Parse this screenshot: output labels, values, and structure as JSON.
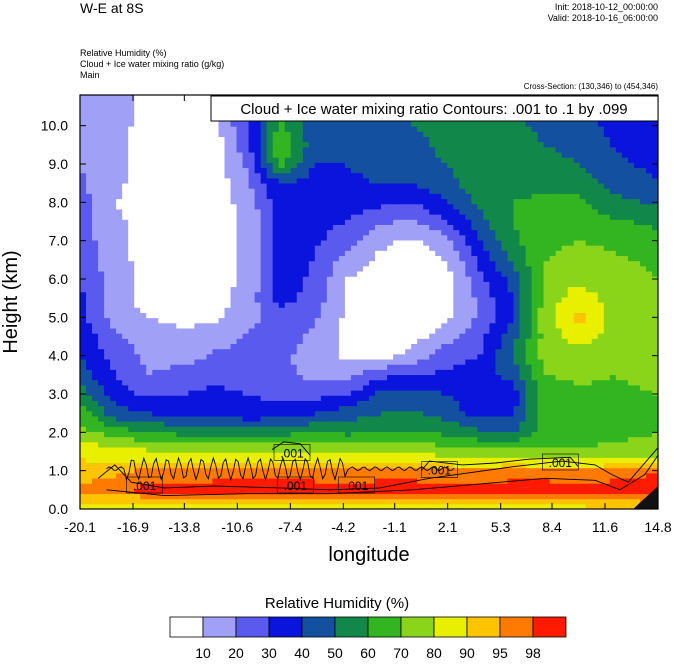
{
  "header": {
    "title": "W-E at 8S",
    "init": "Init: 2018-10-12_00:00:00",
    "valid": "Valid: 2018-10-16_06:00:00",
    "variable_1": "Relative Humidity   (%)",
    "variable_2": "Cloud + Ice water mixing ratio   (g/kg)",
    "variable_3": "Main",
    "cross_section": "Cross-Section: (130,346) to (454,346)"
  },
  "chart_data": {
    "type": "heatmap",
    "title": "",
    "xlabel": "longitude",
    "ylabel": "Height (km)",
    "xlim": [
      -20.1,
      14.8
    ],
    "ylim": [
      0,
      10.8
    ],
    "x_ticks": [
      "-20.1",
      "-16.9",
      "-13.8",
      "-10.6",
      "-7.4",
      "-4.2",
      "-1.1",
      "2.1",
      "5.3",
      "8.4",
      "11.6",
      "14.8"
    ],
    "y_ticks": [
      "0.0",
      "1.0",
      "2.0",
      "3.0",
      "4.0",
      "5.0",
      "6.0",
      "7.0",
      "8.0",
      "9.0",
      "10.0"
    ],
    "contour_annotation": "Cloud + Ice water mixing ratio Contours: .001 to .1 by .099",
    "contour_labels": [
      {
        "text": ".001",
        "x": -16.2,
        "y": 0.6
      },
      {
        "text": ".001",
        "x": -7.3,
        "y": 1.45
      },
      {
        "text": ".001",
        "x": -7.1,
        "y": 0.6
      },
      {
        "text": ".001",
        "x": -3.4,
        "y": 0.6
      },
      {
        "text": ".001",
        "x": 1.6,
        "y": 1.0
      },
      {
        "text": ".001",
        "x": 8.9,
        "y": 1.2
      }
    ],
    "colorbar": {
      "title": "Relative Humidity  (%)",
      "levels": [
        "10",
        "20",
        "30",
        "40",
        "50",
        "60",
        "70",
        "80",
        "90",
        "95",
        "98"
      ],
      "colors": [
        "#ffffff",
        "#a0a0f7",
        "#5a5aee",
        "#0a14dc",
        "#1450a0",
        "#11884a",
        "#33b522",
        "#8ad41a",
        "#e8f000",
        "#ffc400",
        "#ff7a00",
        "#ff1a00"
      ]
    },
    "rh_grid": {
      "x": [
        -20.1,
        -18.0,
        -16.0,
        -14.0,
        -12.0,
        -10.0,
        -8.0,
        -6.0,
        -4.0,
        -2.0,
        0.0,
        2.0,
        4.0,
        6.0,
        8.0,
        10.0,
        12.0,
        14.8
      ],
      "y": [
        0.0,
        0.5,
        1.0,
        1.5,
        2.0,
        2.5,
        3.0,
        3.5,
        4.0,
        4.5,
        5.0,
        5.5,
        6.0,
        6.5,
        7.0,
        7.5,
        8.0,
        8.5,
        9.0,
        9.5,
        10.0,
        10.5,
        10.8
      ],
      "values": [
        [
          86,
          86,
          88,
          88,
          88,
          88,
          88,
          88,
          88,
          88,
          88,
          88,
          88,
          88,
          88,
          88,
          90,
          94
        ],
        [
          96,
          98,
          99,
          99,
          99,
          99,
          99,
          99,
          99,
          99,
          99,
          99,
          99,
          99,
          99,
          99,
          99,
          99
        ],
        [
          93,
          94,
          96,
          96,
          97,
          97,
          97,
          97,
          96,
          97,
          97,
          96,
          96,
          97,
          97,
          96,
          97,
          98
        ],
        [
          88,
          84,
          82,
          80,
          80,
          80,
          80,
          80,
          80,
          80,
          78,
          76,
          74,
          74,
          72,
          72,
          74,
          76
        ],
        [
          74,
          66,
          60,
          58,
          56,
          55,
          57,
          60,
          58,
          60,
          62,
          58,
          52,
          48,
          66,
          64,
          66,
          70
        ],
        [
          66,
          44,
          40,
          38,
          36,
          34,
          34,
          40,
          45,
          50,
          52,
          46,
          36,
          38,
          65,
          66,
          66,
          70
        ],
        [
          56,
          35,
          28,
          30,
          32,
          30,
          28,
          26,
          30,
          42,
          44,
          40,
          32,
          34,
          66,
          68,
          68,
          70
        ],
        [
          45,
          30,
          20,
          25,
          28,
          26,
          22,
          18,
          16,
          28,
          30,
          32,
          34,
          44,
          70,
          72,
          70,
          72
        ],
        [
          40,
          26,
          18,
          14,
          22,
          24,
          22,
          16,
          8,
          6,
          14,
          26,
          30,
          50,
          74,
          76,
          72,
          72
        ],
        [
          38,
          22,
          16,
          12,
          14,
          22,
          24,
          18,
          6,
          4,
          6,
          16,
          26,
          46,
          74,
          84,
          76,
          72
        ],
        [
          34,
          16,
          10,
          8,
          8,
          16,
          26,
          22,
          8,
          4,
          2,
          8,
          22,
          40,
          76,
          94,
          78,
          72
        ],
        [
          32,
          14,
          6,
          5,
          6,
          14,
          34,
          26,
          8,
          4,
          2,
          6,
          22,
          40,
          74,
          86,
          76,
          72
        ],
        [
          30,
          14,
          6,
          6,
          6,
          12,
          36,
          28,
          10,
          4,
          2,
          6,
          26,
          44,
          72,
          78,
          74,
          70
        ],
        [
          28,
          14,
          6,
          6,
          5,
          12,
          34,
          30,
          16,
          8,
          4,
          10,
          32,
          52,
          70,
          74,
          72,
          68
        ],
        [
          26,
          12,
          6,
          5,
          5,
          12,
          34,
          32,
          24,
          12,
          8,
          16,
          38,
          58,
          68,
          70,
          68,
          64
        ],
        [
          24,
          12,
          6,
          5,
          5,
          12,
          34,
          34,
          30,
          22,
          18,
          28,
          46,
          60,
          66,
          66,
          62,
          58
        ],
        [
          24,
          10,
          6,
          5,
          4,
          14,
          36,
          34,
          34,
          32,
          30,
          40,
          52,
          60,
          62,
          62,
          54,
          48
        ],
        [
          22,
          12,
          6,
          4,
          4,
          18,
          40,
          36,
          38,
          40,
          40,
          46,
          56,
          58,
          58,
          56,
          46,
          40
        ],
        [
          20,
          12,
          6,
          4,
          4,
          22,
          64,
          40,
          40,
          44,
          46,
          50,
          56,
          56,
          54,
          50,
          42,
          38
        ],
        [
          20,
          12,
          6,
          4,
          4,
          26,
          70,
          44,
          42,
          46,
          48,
          52,
          56,
          54,
          50,
          46,
          40,
          36
        ],
        [
          18,
          12,
          8,
          6,
          6,
          30,
          62,
          46,
          44,
          48,
          50,
          52,
          54,
          52,
          48,
          44,
          38,
          36
        ],
        [
          16,
          12,
          8,
          6,
          8,
          32,
          50,
          46,
          46,
          48,
          50,
          52,
          52,
          50,
          46,
          42,
          38,
          34
        ],
        [
          16,
          12,
          8,
          6,
          8,
          32,
          48,
          46,
          46,
          48,
          50,
          50,
          50,
          48,
          46,
          42,
          38,
          34
        ]
      ]
    }
  }
}
